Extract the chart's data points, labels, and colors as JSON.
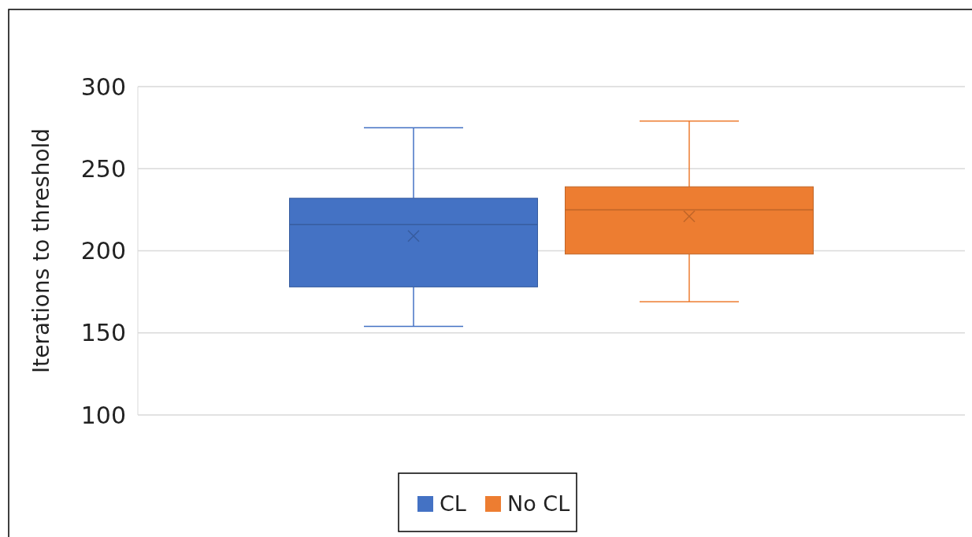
{
  "chart_data": {
    "type": "box",
    "ylabel": "Iterations to threshold",
    "categories": [
      null
    ],
    "ylim": [
      100,
      300
    ],
    "yticks": [
      100,
      150,
      200,
      250,
      300
    ],
    "grid": "y",
    "legend": "bottom",
    "marker": "cross",
    "series": [
      {
        "name": "CL",
        "color": "#4472c4",
        "boxes": [
          {
            "low": 154,
            "q1": 178,
            "median": 216,
            "q3": 232,
            "high": 275,
            "mean": 209
          }
        ]
      },
      {
        "name": "No CL",
        "color": "#ed7d31",
        "boxes": [
          {
            "low": 169,
            "q1": 198,
            "median": 225,
            "q3": 239,
            "high": 279,
            "mean": 221
          }
        ]
      }
    ]
  }
}
